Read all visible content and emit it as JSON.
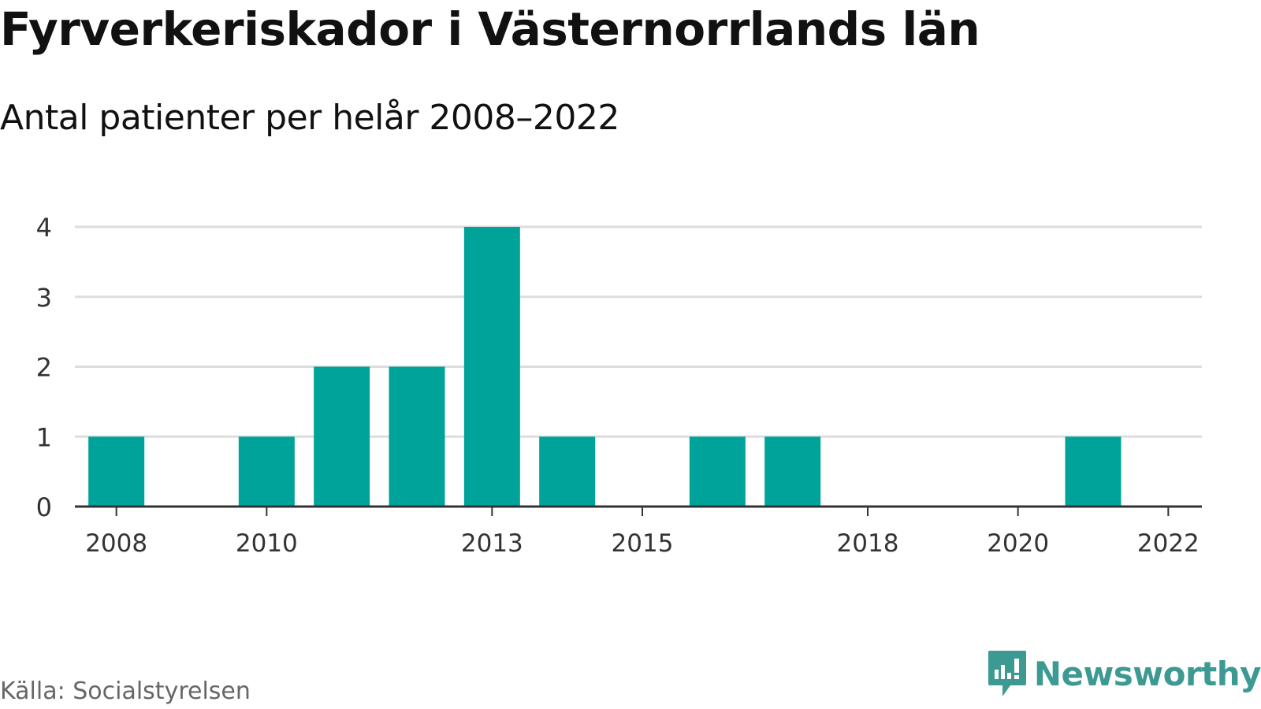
{
  "title": "Fyrverkeriskador i Västernorrlands län",
  "subtitle": "Antal patienter per helår 2008–2022",
  "source": "Källa: Socialstyrelsen",
  "brand": {
    "name": "Newsworthy",
    "logo_icon": "newsworthy-chart-logo-icon",
    "color": "#3c9a93"
  },
  "colors": {
    "bar": "#00a39a",
    "grid": "#dddddd",
    "axis": "#333333",
    "tick_text": "#333333"
  },
  "chart_data": {
    "type": "bar",
    "x": [
      2008,
      2009,
      2010,
      2011,
      2012,
      2013,
      2014,
      2015,
      2016,
      2017,
      2018,
      2019,
      2020,
      2021,
      2022
    ],
    "values": [
      1,
      0,
      1,
      2,
      2,
      4,
      1,
      0,
      1,
      1,
      0,
      0,
      0,
      1,
      0
    ],
    "x_tick_labels": [
      "2008",
      "2010",
      "2013",
      "2015",
      "2018",
      "2020",
      "2022"
    ],
    "y_ticks": [
      0,
      1,
      2,
      3,
      4
    ],
    "ylim": [
      0,
      4
    ],
    "grid": true,
    "title": "Fyrverkeriskador i Västernorrlands län",
    "subtitle": "Antal patienter per helår 2008–2022",
    "xlabel": "",
    "ylabel": ""
  }
}
